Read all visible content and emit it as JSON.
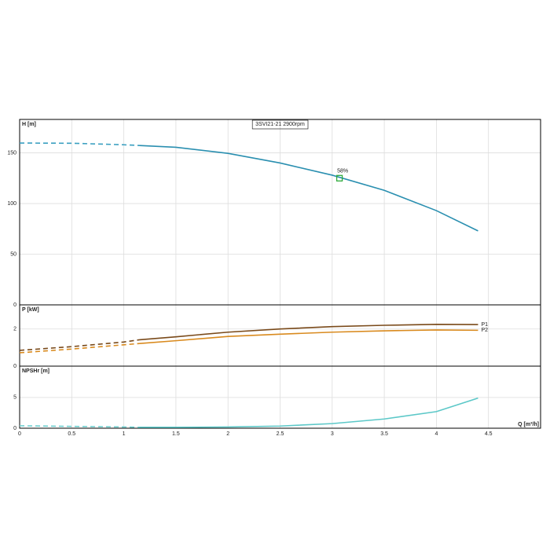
{
  "chart_data": [
    {
      "type": "line",
      "title": "3SVI21-21 2900rpm",
      "ylabel": "H [m]",
      "x": [
        0,
        0.5,
        1,
        1.15,
        1.5,
        2,
        2.5,
        3,
        3.5,
        4,
        4.4
      ],
      "series": [
        {
          "color": "#3a9fc0",
          "style": "dashed",
          "values": [
            159.7,
            159.5,
            158,
            157.3,
            null,
            null,
            null,
            null,
            null,
            null,
            null
          ]
        },
        {
          "color": "#2a8fb0",
          "style": "solid",
          "values": [
            null,
            null,
            null,
            157.3,
            155.5,
            149.5,
            140,
            128,
            113,
            93,
            73
          ]
        }
      ],
      "annotations": [
        {
          "text": "58%",
          "x": 3.07,
          "y": 125,
          "color": "#2eaa3a"
        }
      ],
      "xlim": [
        0,
        5
      ],
      "xticks": [
        0,
        0.5,
        1,
        1.5,
        2,
        2.5,
        3,
        3.5,
        4,
        4.5
      ],
      "ylim": [
        0,
        183
      ],
      "yticks": [
        0,
        50,
        100,
        150
      ],
      "grid": true
    },
    {
      "type": "line",
      "ylabel": "P [kW]",
      "x": [
        0,
        0.5,
        1,
        1.15,
        1.5,
        2,
        2.5,
        3,
        3.5,
        4,
        4.4
      ],
      "series": [
        {
          "color": "#7a4a1a",
          "style": "dashed",
          "values": [
            0.85,
            1.05,
            1.3,
            1.42,
            null,
            null,
            null,
            null,
            null,
            null,
            null
          ]
        },
        {
          "name": "P1",
          "color": "#7a4a1a",
          "style": "solid",
          "values": [
            null,
            null,
            null,
            1.42,
            1.58,
            1.83,
            2.0,
            2.13,
            2.2,
            2.25,
            2.24
          ]
        },
        {
          "color": "#d98a1e",
          "style": "dashed",
          "values": [
            0.72,
            0.92,
            1.15,
            1.22,
            null,
            null,
            null,
            null,
            null,
            null,
            null
          ]
        },
        {
          "name": "P2",
          "color": "#d98a1e",
          "style": "solid",
          "values": [
            null,
            null,
            null,
            1.22,
            1.37,
            1.6,
            1.72,
            1.83,
            1.9,
            1.95,
            1.93
          ]
        }
      ],
      "xlim": [
        0,
        5
      ],
      "xticks": [
        0,
        0.5,
        1,
        1.5,
        2,
        2.5,
        3,
        3.5,
        4,
        4.5
      ],
      "ylim": [
        0,
        3.3
      ],
      "yticks": [
        0,
        2
      ],
      "grid": true
    },
    {
      "type": "line",
      "ylabel": "NPSHr [m]",
      "xlabel": "Q [m³/h]",
      "x": [
        0,
        0.5,
        1,
        1.15,
        1.5,
        2,
        2.5,
        3,
        3.5,
        4,
        4.4
      ],
      "series": [
        {
          "color": "#6fd0d0",
          "style": "dashed",
          "values": [
            0.4,
            0.3,
            0.2,
            0.15,
            null,
            null,
            null,
            null,
            null,
            null,
            null
          ]
        },
        {
          "color": "#5cc8c8",
          "style": "solid",
          "values": [
            null,
            null,
            null,
            0.15,
            0.15,
            0.2,
            0.35,
            0.75,
            1.5,
            2.7,
            4.9
          ]
        }
      ],
      "xlim": [
        0,
        5
      ],
      "xticks": [
        0,
        0.5,
        1,
        1.5,
        2,
        2.5,
        3,
        3.5,
        4,
        4.5
      ],
      "ylim": [
        0,
        10.1
      ],
      "yticks": [
        0,
        5
      ],
      "grid": true
    }
  ]
}
